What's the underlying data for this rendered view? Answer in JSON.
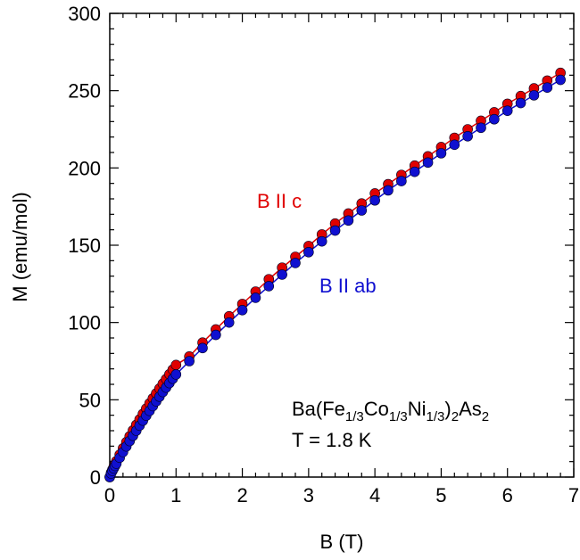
{
  "chart_data": {
    "type": "scatter",
    "xlabel": "B (T)",
    "ylabel": "M (emu/mol)",
    "xlim": [
      0,
      7
    ],
    "ylim": [
      0,
      300
    ],
    "xticks": [
      0,
      1,
      2,
      3,
      4,
      5,
      6,
      7
    ],
    "yticks": [
      0,
      50,
      100,
      150,
      200,
      250,
      300
    ],
    "grid": false,
    "series": [
      {
        "name": "B II c",
        "color": "#e00000",
        "line": true,
        "marker": "circle",
        "x": [
          0.0,
          0.02,
          0.04,
          0.06,
          0.08,
          0.1,
          0.15,
          0.2,
          0.25,
          0.3,
          0.35,
          0.4,
          0.45,
          0.5,
          0.55,
          0.6,
          0.65,
          0.7,
          0.75,
          0.8,
          0.85,
          0.9,
          0.95,
          1.0,
          1.2,
          1.4,
          1.6,
          1.8,
          2.0,
          2.2,
          2.4,
          2.6,
          2.8,
          3.0,
          3.2,
          3.4,
          3.6,
          3.8,
          4.0,
          4.2,
          4.4,
          4.6,
          4.8,
          5.0,
          5.2,
          5.4,
          5.6,
          5.8,
          6.0,
          6.2,
          6.4,
          6.6,
          6.8
        ],
        "y": [
          0,
          2.8,
          4.8,
          6.7,
          8.5,
          10.3,
          14.5,
          18.6,
          22.6,
          26.4,
          30.2,
          33.8,
          37.3,
          40.9,
          44.3,
          47.7,
          50.9,
          54.1,
          57.3,
          60.4,
          63.4,
          66.5,
          69.5,
          72.5,
          78.0,
          87.0,
          95.5,
          104.0,
          112.0,
          120.0,
          128.0,
          135.5,
          142.5,
          149.5,
          157.0,
          164.0,
          170.5,
          177.0,
          183.5,
          189.5,
          195.5,
          201.5,
          207.5,
          213.5,
          219.5,
          225.0,
          230.5,
          236.0,
          241.5,
          246.5,
          251.5,
          256.5,
          261.5
        ]
      },
      {
        "name": "B II ab",
        "color": "#1010d0",
        "line": true,
        "marker": "circle",
        "x": [
          0.0,
          0.02,
          0.04,
          0.06,
          0.08,
          0.1,
          0.15,
          0.2,
          0.25,
          0.3,
          0.35,
          0.4,
          0.45,
          0.5,
          0.55,
          0.6,
          0.65,
          0.7,
          0.75,
          0.8,
          0.85,
          0.9,
          0.95,
          1.0,
          1.2,
          1.4,
          1.6,
          1.8,
          2.0,
          2.2,
          2.4,
          2.6,
          2.8,
          3.0,
          3.2,
          3.4,
          3.6,
          3.8,
          4.0,
          4.2,
          4.4,
          4.6,
          4.8,
          5.0,
          5.2,
          5.4,
          5.6,
          5.8,
          6.0,
          6.2,
          6.4,
          6.6,
          6.8
        ],
        "y": [
          0,
          2.3,
          4.0,
          5.6,
          7.2,
          8.7,
          12.5,
          16.2,
          19.8,
          23.3,
          26.7,
          30.0,
          33.3,
          36.5,
          39.7,
          42.8,
          45.9,
          49.0,
          52.0,
          55.0,
          57.9,
          60.8,
          63.6,
          66.4,
          75.0,
          83.5,
          92.0,
          100.0,
          108.0,
          116.0,
          123.5,
          131.0,
          138.5,
          145.5,
          152.5,
          159.5,
          166.0,
          172.5,
          179.0,
          185.5,
          191.5,
          197.5,
          203.5,
          209.5,
          215.0,
          220.5,
          226.0,
          231.5,
          237.0,
          242.0,
          247.0,
          252.0,
          257.0
        ]
      }
    ],
    "annotations": {
      "series_c_label": "B II c",
      "series_ab_label": "B II ab",
      "formula": {
        "p1": "Ba(Fe",
        "s1": "1/3",
        "p2": "Co",
        "s2": "1/3",
        "p3": "Ni",
        "s3": "1/3",
        "p4": ")",
        "s4": "2",
        "p5": "As",
        "s5": "2"
      },
      "temperature": "T = 1.8 K"
    }
  }
}
